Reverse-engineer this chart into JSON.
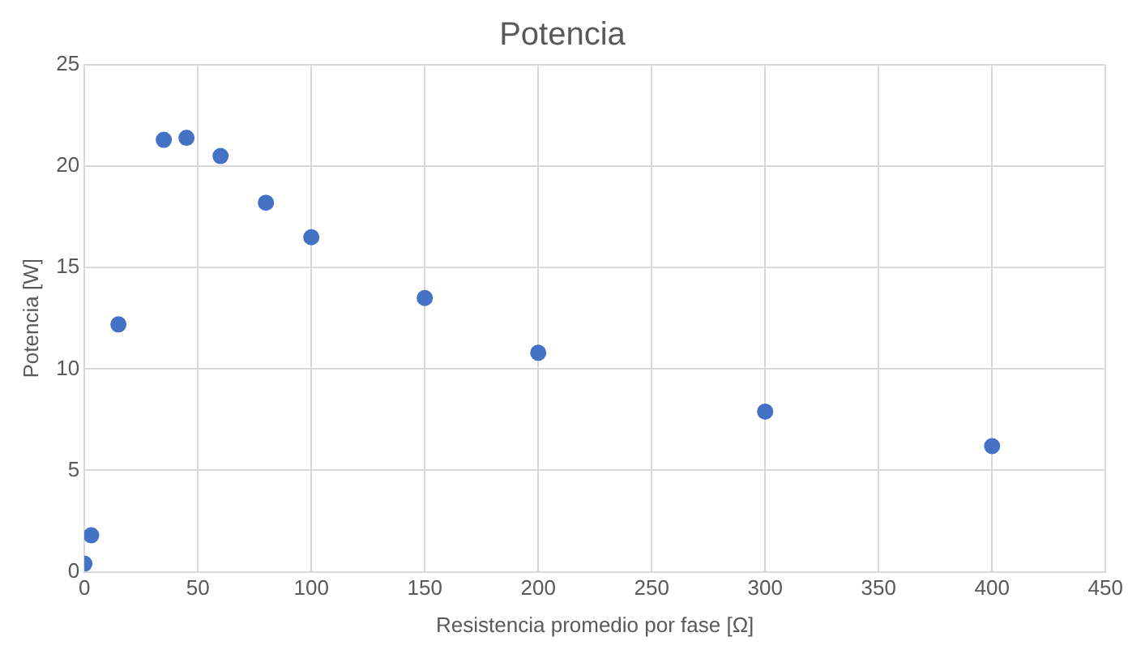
{
  "chart_data": {
    "type": "scatter",
    "title": "Potencia",
    "xlabel": "Resistencia promedio por fase [Ω]",
    "ylabel": "Potencia [W]",
    "x": [
      0,
      3,
      15,
      35,
      45,
      60,
      80,
      100,
      150,
      200,
      300,
      400
    ],
    "values": [
      0.4,
      1.8,
      12.2,
      21.3,
      21.4,
      20.5,
      18.2,
      16.5,
      13.5,
      10.8,
      7.9,
      6.2
    ],
    "color": "#4472c4",
    "marker": "circle",
    "xlim": [
      0,
      450
    ],
    "xticks": [
      0,
      50,
      100,
      150,
      200,
      250,
      300,
      350,
      400,
      450
    ],
    "ylim": [
      0,
      25
    ],
    "yticks": [
      0,
      5,
      10,
      15,
      20,
      25
    ],
    "grid": true,
    "legend": false
  }
}
